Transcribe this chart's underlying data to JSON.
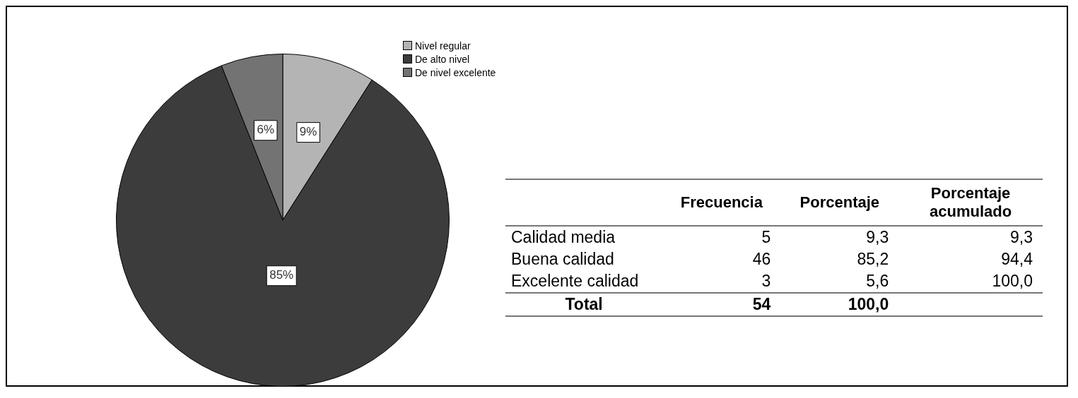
{
  "chart_data": [
    {
      "type": "pie",
      "categories": [
        "Nivel regular",
        "De alto nivel",
        "De nivel excelente"
      ],
      "values": [
        9,
        85,
        6
      ],
      "value_labels": [
        "9%",
        "85%",
        "6%"
      ],
      "colors": [
        "#b4b4b4",
        "#3c3c3c",
        "#737373"
      ],
      "legend": "top right"
    },
    {
      "type": "other",
      "data_labels": true,
      "categories": [
        "Calidad media",
        "Buena calidad",
        "Excelente calidad",
        "Total"
      ],
      "series": [
        {
          "name": "Frecuencia",
          "values": [
            5,
            46,
            3,
            54
          ]
        },
        {
          "name": "Porcentaje",
          "values": [
            9.3,
            85.2,
            5.6,
            100.0
          ],
          "value_labels": [
            "9,3",
            "85,2",
            "5,6",
            "100,0"
          ]
        },
        {
          "name": "Porcentaje acumulado",
          "values": [
            9.3,
            94.4,
            100.0,
            null
          ],
          "value_labels": [
            "9,3",
            "94,4",
            "100,0",
            null
          ]
        }
      ]
    }
  ]
}
